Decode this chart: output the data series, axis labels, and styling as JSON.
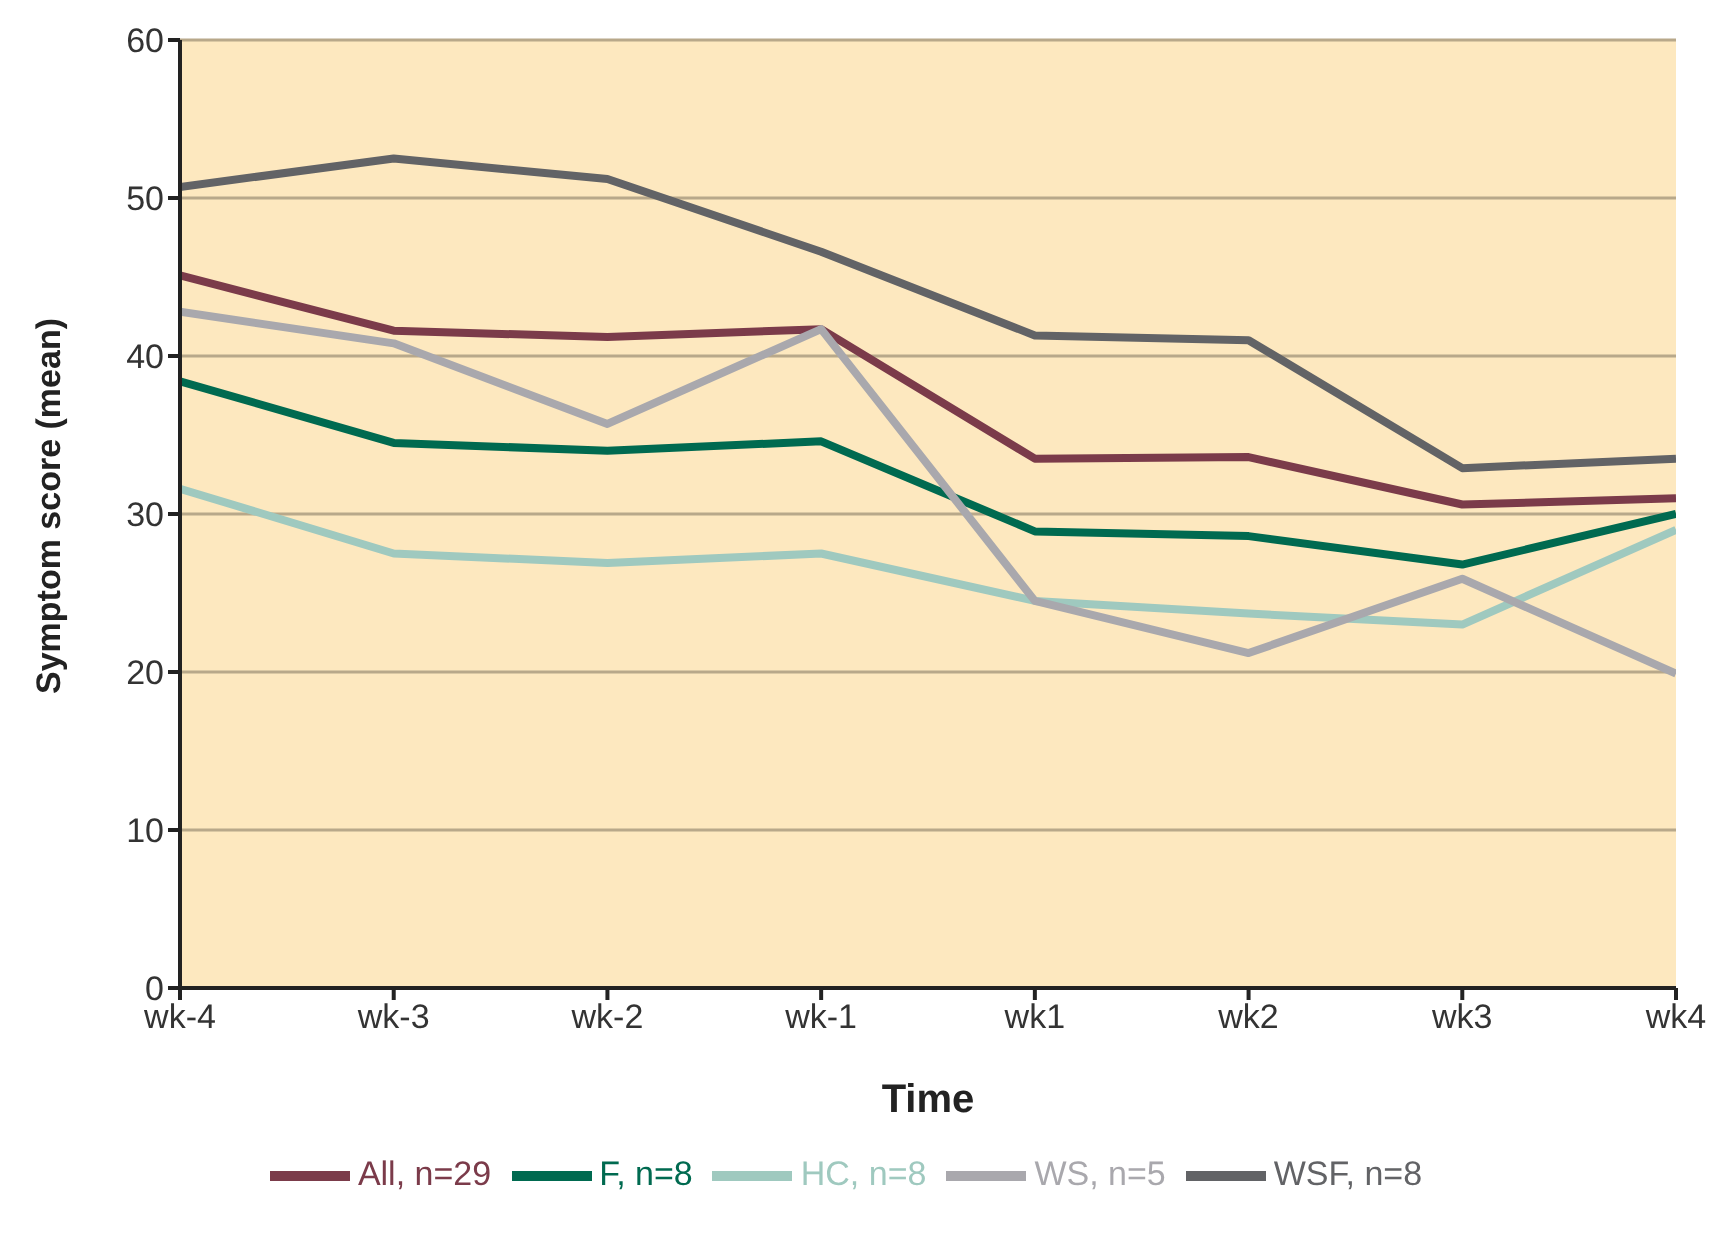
{
  "chart_data": {
    "type": "line",
    "xlabel": "Time",
    "ylabel": "Symptom score (mean)",
    "categories": [
      "wk-4",
      "wk-3",
      "wk-2",
      "wk-1",
      "wk1",
      "wk2",
      "wk3",
      "wk4"
    ],
    "series": [
      {
        "name": "All, n=29",
        "color": "#7b3b4a",
        "values": [
          45.1,
          41.6,
          41.2,
          41.7,
          33.5,
          33.6,
          30.6,
          31.0
        ]
      },
      {
        "name": "HC, n=8",
        "color": "#9fc9bf",
        "values": [
          31.6,
          27.5,
          26.9,
          27.5,
          24.5,
          23.7,
          23.0,
          29.0
        ]
      },
      {
        "name": "F, n=8",
        "color": "#006a50",
        "values": [
          38.4,
          34.5,
          34.0,
          34.6,
          28.9,
          28.6,
          26.8,
          30.0
        ]
      },
      {
        "name": "WSF, n=8",
        "color": "#626366",
        "values": [
          50.7,
          52.5,
          51.2,
          46.6,
          41.3,
          41.0,
          32.9,
          33.5
        ]
      },
      {
        "name": "WS, n=5",
        "color": "#a9a8ad",
        "values": [
          42.8,
          40.8,
          35.7,
          41.7,
          24.5,
          21.2,
          25.9,
          19.9
        ]
      }
    ],
    "ylim": [
      0,
      60
    ],
    "yticks": [
      0,
      10,
      20,
      30,
      40,
      50,
      60
    ],
    "grid": "y",
    "legend": "bottom",
    "marker": "none",
    "line_style": "solid"
  }
}
